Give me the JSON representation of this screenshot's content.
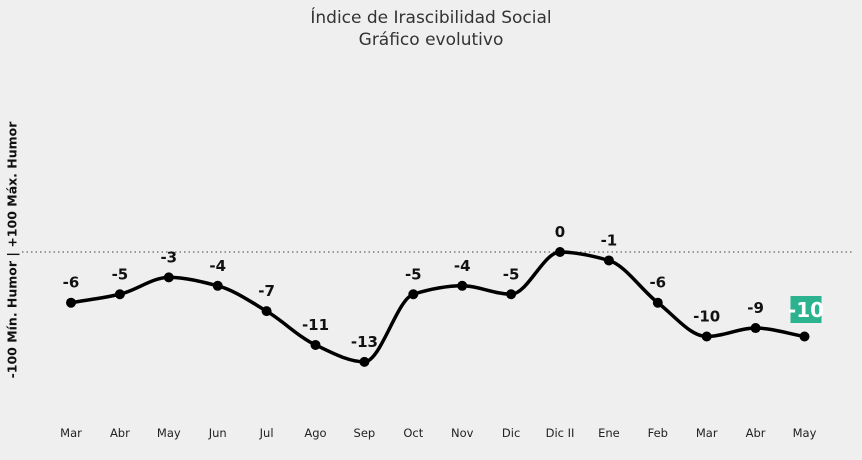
{
  "chart_data": {
    "type": "line",
    "title": "Índice de Irascibilidad Social",
    "subtitle": "Gráfico evolutivo",
    "ylabel": "-100 Mín. Humor | +100 Máx. Humor",
    "xlabel": "",
    "categories": [
      "Mar",
      "Abr",
      "May",
      "Jun",
      "Jul",
      "Ago",
      "Sep",
      "Oct",
      "Nov",
      "Dic",
      "Dic II",
      "Ene",
      "Feb",
      "Mar",
      "Abr",
      "May"
    ],
    "values": [
      -6,
      -5,
      -3,
      -4,
      -7,
      -11,
      -13,
      -5,
      -4,
      -5,
      0,
      -1,
      -6,
      -10,
      -9,
      -10
    ],
    "reference_line": 0,
    "grid": false,
    "colors": {
      "line": "#000000",
      "highlight": "#2bb38f",
      "reference": "#666666"
    }
  }
}
